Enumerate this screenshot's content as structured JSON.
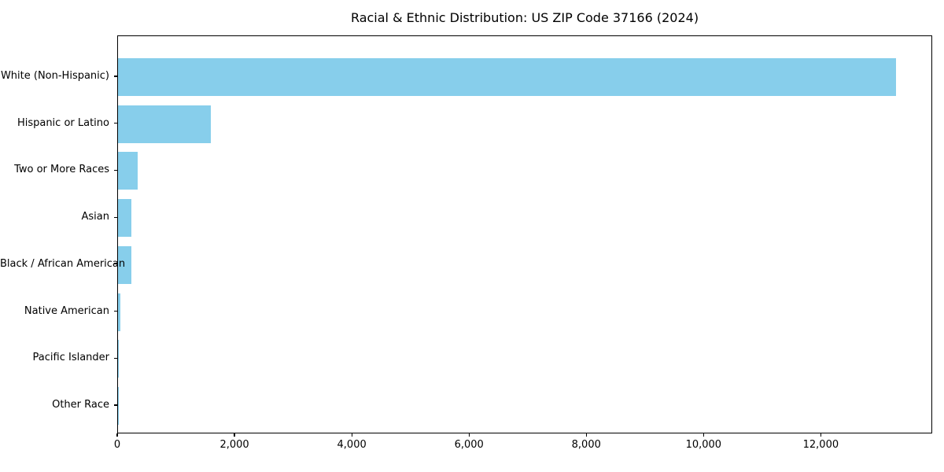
{
  "chart_data": {
    "type": "bar",
    "orientation": "horizontal",
    "title": "Racial & Ethnic Distribution: US ZIP Code 37166 (2024)",
    "categories": [
      "White (Non-Hispanic)",
      "Hispanic or Latino",
      "Two or More Races",
      "Asian",
      "Black / African American",
      "Native American",
      "Pacific Islander",
      "Other Race"
    ],
    "values": [
      13270,
      1580,
      340,
      228,
      224,
      35,
      10,
      7
    ],
    "xlabel": "",
    "ylabel": "",
    "xlim": [
      0,
      13900
    ],
    "xticks": [
      0,
      2000,
      4000,
      6000,
      8000,
      10000,
      12000
    ],
    "xtick_labels": [
      "0",
      "2,000",
      "4,000",
      "6,000",
      "8,000",
      "10,000",
      "12,000"
    ],
    "bar_color": "#87CEEB",
    "frame_color": "#000000",
    "grid": false,
    "legend_position": "none"
  }
}
